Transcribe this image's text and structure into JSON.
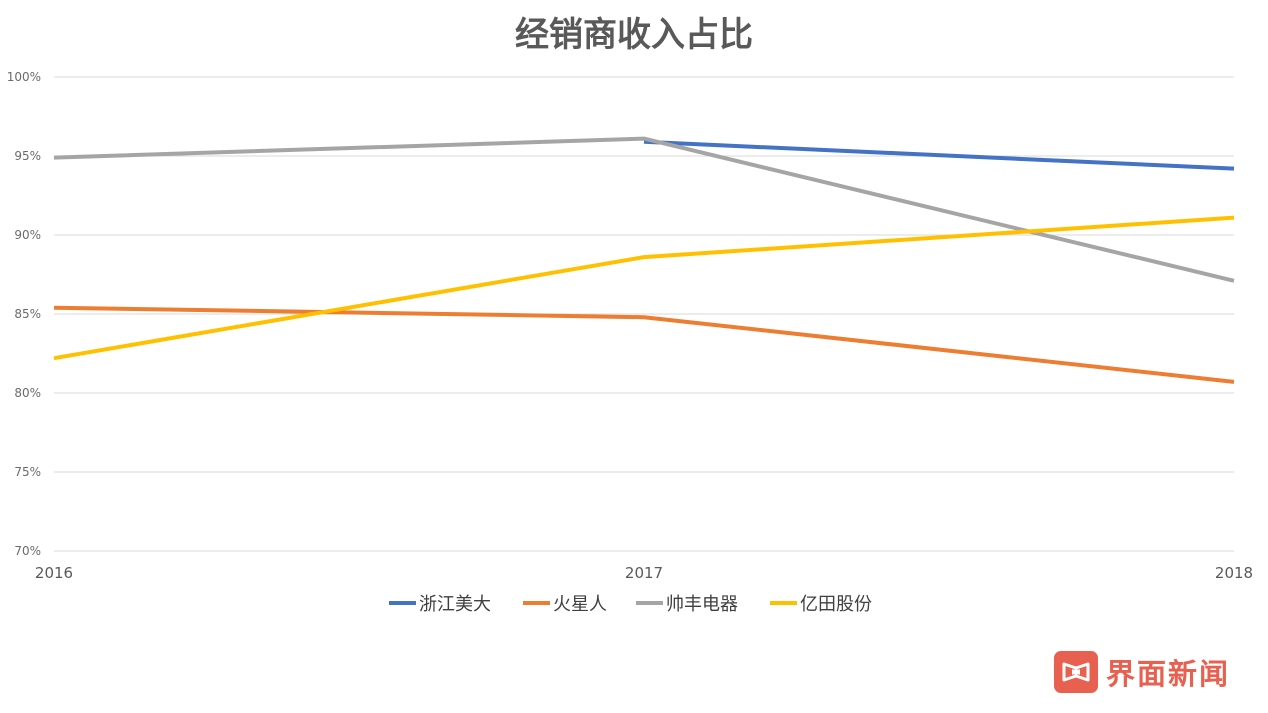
{
  "chart_data": {
    "type": "line",
    "title": "经销商收入占比",
    "x": [
      "2016",
      "2017",
      "2018"
    ],
    "yticks": [
      "70%",
      "75%",
      "80%",
      "85%",
      "90%",
      "95%",
      "100%"
    ],
    "ylim": [
      70,
      100
    ],
    "grid": true,
    "legend_position": "bottom",
    "series": [
      {
        "name": "浙江美大",
        "color": "#4472c4",
        "values": [
          null,
          95.9,
          94.2
        ]
      },
      {
        "name": "火星人",
        "color": "#ed7d31",
        "values": [
          85.4,
          84.8,
          80.7
        ]
      },
      {
        "name": "帅丰电器",
        "color": "#a5a5a5",
        "values": [
          94.9,
          96.1,
          87.1
        ]
      },
      {
        "name": "亿田股份",
        "color": "#ffc000",
        "values": [
          82.2,
          88.6,
          91.1
        ]
      }
    ]
  },
  "watermark": {
    "text": "界面新闻",
    "color": "#e8604f"
  }
}
